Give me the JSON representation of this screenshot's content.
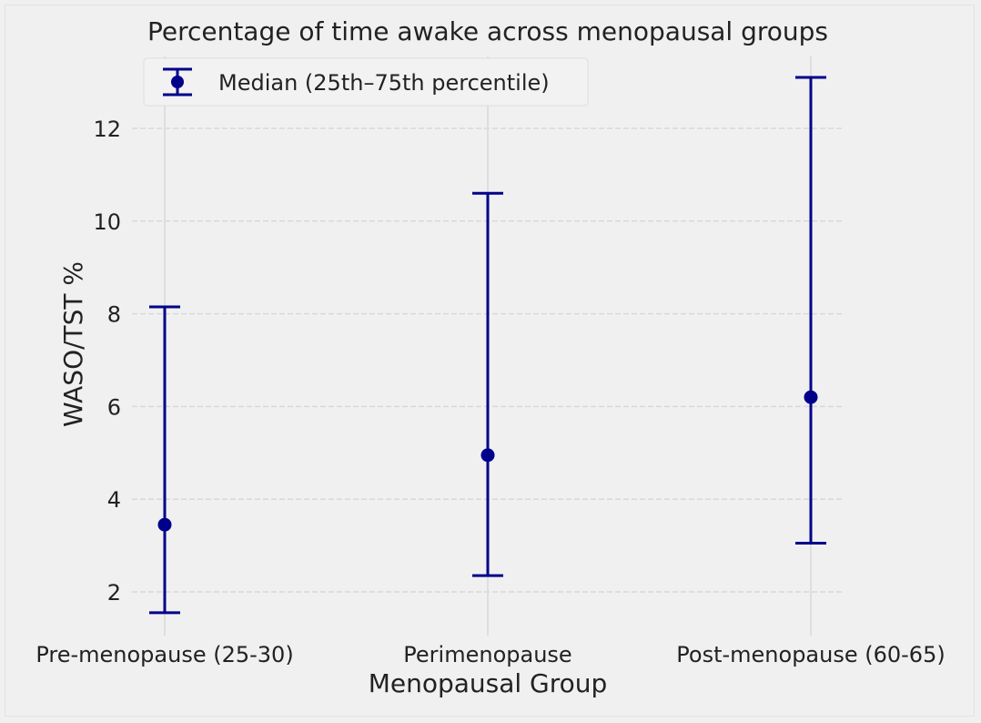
{
  "chart_data": {
    "type": "errorbar",
    "title": "Percentage of time awake across menopausal groups",
    "xlabel": "Menopausal Group",
    "ylabel": "WASO/TST %",
    "categories": [
      "Pre-menopause (25-30)",
      "Perimenopause",
      "Post-menopause (60-65)"
    ],
    "series": [
      {
        "name": "Median (25th–75th percentile)",
        "median": [
          3.45,
          4.95,
          6.2
        ],
        "lower": [
          1.55,
          2.35,
          3.05
        ],
        "upper": [
          8.15,
          10.6,
          13.1
        ]
      }
    ],
    "ylim": [
      1.3,
      13.5
    ],
    "yticks": [
      2,
      4,
      6,
      8,
      10,
      12
    ],
    "ytick_labels": [
      "2",
      "4",
      "6",
      "8",
      "10",
      "12"
    ],
    "grid": true,
    "legend_position": "upper-left",
    "colors": {
      "series": "#00008b",
      "grid": "#d8d8d8",
      "background": "#f0f0f0",
      "text": "#222222"
    }
  }
}
